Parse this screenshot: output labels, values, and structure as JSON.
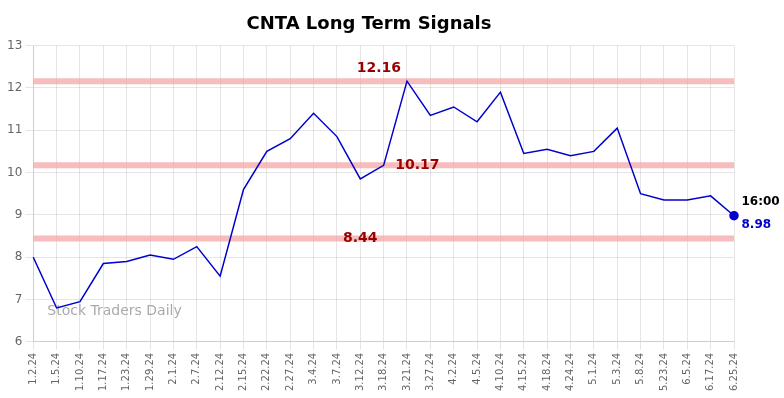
{
  "chart_data": {
    "type": "line",
    "title": "CNTA Long Term Signals",
    "categories": [
      "1.2.24",
      "1.5.24",
      "1.10.24",
      "1.17.24",
      "1.23.24",
      "1.29.24",
      "2.1.24",
      "2.7.24",
      "2.12.24",
      "2.15.24",
      "2.22.24",
      "2.27.24",
      "3.4.24",
      "3.7.24",
      "3.12.24",
      "3.18.24",
      "3.21.24",
      "3.27.24",
      "4.2.24",
      "4.5.24",
      "4.10.24",
      "4.15.24",
      "4.18.24",
      "4.24.24",
      "5.1.24",
      "5.3.24",
      "5.8.24",
      "5.23.24",
      "6.5.24",
      "6.17.24",
      "6.25.24"
    ],
    "values": [
      8.0,
      6.8,
      6.95,
      7.85,
      7.9,
      8.05,
      7.95,
      8.25,
      7.55,
      9.6,
      10.5,
      10.8,
      11.4,
      10.85,
      9.85,
      10.17,
      12.16,
      11.35,
      11.55,
      11.2,
      11.9,
      10.45,
      10.55,
      10.4,
      10.5,
      11.05,
      9.5,
      9.35,
      9.35,
      9.45,
      8.98
    ],
    "color": "#0000cc",
    "ylim": [
      6,
      13
    ],
    "yticks": [
      6,
      7,
      8,
      9,
      10,
      11,
      12,
      13
    ],
    "grid": true,
    "hlines": [
      12.16,
      10.17,
      8.44
    ],
    "hline_color": "#f5a0a0",
    "annotations": [
      {
        "text": "12.16",
        "category": "3.21.24",
        "y": 12.16,
        "color": "#990000",
        "anchor": "above-left"
      },
      {
        "text": "10.17",
        "category": "3.18.24",
        "y": 10.17,
        "color": "#990000",
        "anchor": "right"
      },
      {
        "text": "8.44",
        "category": "3.12.24",
        "y": 8.44,
        "color": "#990000",
        "anchor": "center"
      },
      {
        "text": "16:00",
        "category": "6.25.24",
        "y": 8.98,
        "color": "#000000",
        "anchor": "right-above"
      },
      {
        "text": "8.98",
        "category": "6.25.24",
        "y": 8.98,
        "color": "#0000cc",
        "anchor": "right-below"
      }
    ],
    "watermark": "Stock Traders Daily",
    "watermark_color": "#aaaaaa"
  }
}
